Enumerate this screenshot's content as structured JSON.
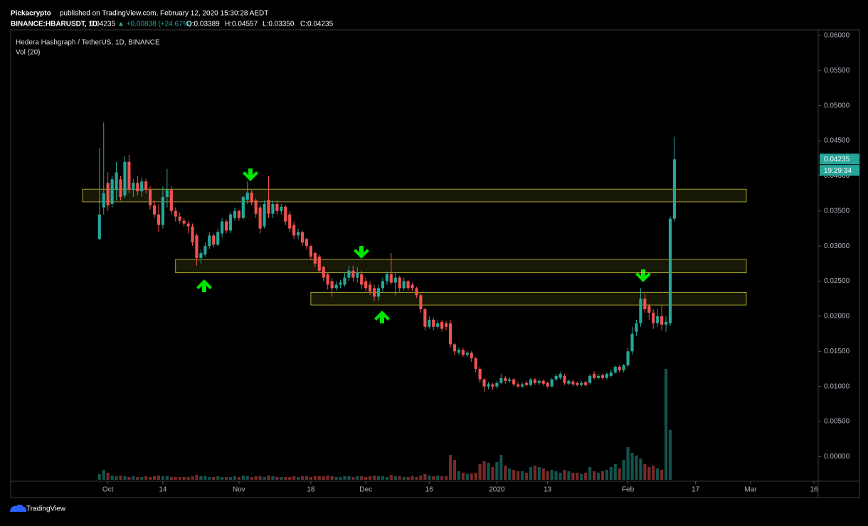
{
  "header": {
    "publisher": "Pickacrypto",
    "published": "published on TradingView.com, February 12, 2020 15:30:28 AEDT",
    "symbol": "BINANCE:HBARUSDT, 1D",
    "last": "0.04235",
    "change": "▲ +0.00838 (+24.67%)",
    "ohlc": [
      "O:0.03389",
      "H:0.04557",
      "L:0.03350",
      "C:0.04235"
    ]
  },
  "footer": {
    "brand": "TradingView"
  },
  "chart_data": {
    "type": "candlestick",
    "title": "Hedera Hashgraph / TetherUS, 1D, BINANCE",
    "subtitle": "Vol (20)",
    "up_color": "#26a69a",
    "down_color": "#ef5350",
    "zone_color": "#c8c832",
    "ylim": [
      -0.0033,
      0.0608
    ],
    "yticks": [
      {
        "value": 0,
        "label": "0.00000"
      },
      {
        "value": 0.005,
        "label": "0.00500"
      },
      {
        "value": 0.01,
        "label": "0.01000"
      },
      {
        "value": 0.015,
        "label": "0.01500"
      },
      {
        "value": 0.02,
        "label": "0.02000"
      },
      {
        "value": 0.025,
        "label": "0.02500"
      },
      {
        "value": 0.03,
        "label": "0.03000"
      },
      {
        "value": 0.035,
        "label": "0.03500"
      },
      {
        "value": 0.04,
        "label": "0.04000"
      },
      {
        "value": 0.045,
        "label": "0.04500"
      },
      {
        "value": 0.05,
        "label": "0.05000"
      },
      {
        "value": 0.055,
        "label": "0.05500"
      },
      {
        "value": 0.06,
        "label": "0.06000"
      }
    ],
    "xlim": [
      -21,
      170
    ],
    "xticks": [
      {
        "value": 2,
        "label": "Oct"
      },
      {
        "value": 15,
        "label": "14"
      },
      {
        "value": 33,
        "label": "Nov"
      },
      {
        "value": 50,
        "label": "18"
      },
      {
        "value": 63,
        "label": "Dec"
      },
      {
        "value": 78,
        "label": "16"
      },
      {
        "value": 94,
        "label": "2020"
      },
      {
        "value": 106,
        "label": "13"
      },
      {
        "value": 125,
        "label": "Feb"
      },
      {
        "value": 141,
        "label": "17"
      },
      {
        "value": 154,
        "label": "Mar"
      },
      {
        "value": 169,
        "label": "16"
      }
    ],
    "last_price": 0.04235,
    "countdown": "19:29:34",
    "zones": [
      {
        "top": 0.0381,
        "bottom": 0.0363,
        "from": -4,
        "to": 153
      },
      {
        "top": 0.0281,
        "bottom": 0.0262,
        "from": 18,
        "to": 153
      },
      {
        "top": 0.0234,
        "bottom": 0.0216,
        "from": 50,
        "to": 153
      }
    ],
    "ohlc": [
      [
        0.031,
        0.044,
        0.0308,
        0.0345
      ],
      [
        0.0355,
        0.0476,
        0.0345,
        0.0375
      ],
      [
        0.039,
        0.0405,
        0.035,
        0.0358
      ],
      [
        0.036,
        0.04,
        0.0355,
        0.0395
      ],
      [
        0.038,
        0.042,
        0.0365,
        0.0405
      ],
      [
        0.0395,
        0.04,
        0.0365,
        0.037
      ],
      [
        0.0372,
        0.0428,
        0.0368,
        0.042
      ],
      [
        0.042,
        0.043,
        0.0375,
        0.038
      ],
      [
        0.038,
        0.0395,
        0.037,
        0.039
      ],
      [
        0.039,
        0.04,
        0.0372,
        0.0378
      ],
      [
        0.0378,
        0.0398,
        0.037,
        0.0392
      ],
      [
        0.0392,
        0.0396,
        0.0375,
        0.038
      ],
      [
        0.038,
        0.0385,
        0.0352,
        0.0358
      ],
      [
        0.0358,
        0.0365,
        0.034,
        0.0345
      ],
      [
        0.0345,
        0.036,
        0.032,
        0.033
      ],
      [
        0.033,
        0.0385,
        0.0325,
        0.037
      ],
      [
        0.037,
        0.041,
        0.0355,
        0.038
      ],
      [
        0.038,
        0.0385,
        0.0345,
        0.035
      ],
      [
        0.035,
        0.0355,
        0.0335,
        0.0342
      ],
      [
        0.0342,
        0.0348,
        0.0332,
        0.0336
      ],
      [
        0.0336,
        0.034,
        0.0328,
        0.0332
      ],
      [
        0.0332,
        0.0336,
        0.0318,
        0.0328
      ],
      [
        0.0328,
        0.0332,
        0.03,
        0.0305
      ],
      [
        0.0315,
        0.0318,
        0.0272,
        0.0283
      ],
      [
        0.0283,
        0.0295,
        0.0275,
        0.029
      ],
      [
        0.0288,
        0.0305,
        0.0285,
        0.03
      ],
      [
        0.03,
        0.032,
        0.0296,
        0.0315
      ],
      [
        0.0315,
        0.0318,
        0.0298,
        0.0302
      ],
      [
        0.0302,
        0.0325,
        0.03,
        0.032
      ],
      [
        0.0318,
        0.034,
        0.0312,
        0.0335
      ],
      [
        0.0335,
        0.0338,
        0.0318,
        0.0322
      ],
      [
        0.0322,
        0.0348,
        0.0318,
        0.0345
      ],
      [
        0.034,
        0.0355,
        0.0336,
        0.035
      ],
      [
        0.035,
        0.0352,
        0.0336,
        0.034
      ],
      [
        0.034,
        0.0372,
        0.0338,
        0.037
      ],
      [
        0.0366,
        0.0392,
        0.036,
        0.0376
      ],
      [
        0.0376,
        0.038,
        0.0358,
        0.0362
      ],
      [
        0.0365,
        0.0368,
        0.034,
        0.0346
      ],
      [
        0.0355,
        0.036,
        0.0318,
        0.0325
      ],
      [
        0.0328,
        0.0365,
        0.0325,
        0.036
      ],
      [
        0.0366,
        0.04,
        0.034,
        0.0346
      ],
      [
        0.0346,
        0.0365,
        0.034,
        0.036
      ],
      [
        0.036,
        0.0365,
        0.0345,
        0.035
      ],
      [
        0.035,
        0.036,
        0.0345,
        0.0356
      ],
      [
        0.0356,
        0.0358,
        0.033,
        0.0335
      ],
      [
        0.0345,
        0.035,
        0.032,
        0.0325
      ],
      [
        0.033,
        0.0335,
        0.031,
        0.0315
      ],
      [
        0.0315,
        0.0325,
        0.031,
        0.032
      ],
      [
        0.032,
        0.0322,
        0.03,
        0.0305
      ],
      [
        0.031,
        0.0312,
        0.0295,
        0.03
      ],
      [
        0.03,
        0.0302,
        0.028,
        0.0285
      ],
      [
        0.029,
        0.0292,
        0.027,
        0.0275
      ],
      [
        0.0285,
        0.0288,
        0.0262,
        0.0265
      ],
      [
        0.027,
        0.0272,
        0.025,
        0.0255
      ],
      [
        0.026,
        0.0262,
        0.0238,
        0.0245
      ],
      [
        0.025,
        0.0254,
        0.0228,
        0.024
      ],
      [
        0.024,
        0.025,
        0.0236,
        0.0245
      ],
      [
        0.0245,
        0.0252,
        0.024,
        0.0248
      ],
      [
        0.0245,
        0.0262,
        0.0242,
        0.0255
      ],
      [
        0.0255,
        0.0272,
        0.025,
        0.0265
      ],
      [
        0.0265,
        0.0272,
        0.025,
        0.0255
      ],
      [
        0.0255,
        0.027,
        0.0248,
        0.0262
      ],
      [
        0.026,
        0.0265,
        0.0238,
        0.0245
      ],
      [
        0.025,
        0.0255,
        0.0235,
        0.024
      ],
      [
        0.0245,
        0.025,
        0.023,
        0.0235
      ],
      [
        0.024,
        0.0245,
        0.0222,
        0.0228
      ],
      [
        0.0228,
        0.0245,
        0.0222,
        0.024
      ],
      [
        0.024,
        0.0255,
        0.0235,
        0.025
      ],
      [
        0.025,
        0.0264,
        0.0245,
        0.026
      ],
      [
        0.026,
        0.029,
        0.0245,
        0.0248
      ],
      [
        0.0248,
        0.0262,
        0.023,
        0.0255
      ],
      [
        0.0255,
        0.0258,
        0.0235,
        0.024
      ],
      [
        0.024,
        0.0255,
        0.0236,
        0.025
      ],
      [
        0.025,
        0.0252,
        0.0236,
        0.024
      ],
      [
        0.0245,
        0.0248,
        0.0236,
        0.024
      ],
      [
        0.024,
        0.0242,
        0.0226,
        0.023
      ],
      [
        0.023,
        0.0232,
        0.0205,
        0.021
      ],
      [
        0.021,
        0.0212,
        0.018,
        0.0185
      ],
      [
        0.0185,
        0.02,
        0.0182,
        0.0195
      ],
      [
        0.0195,
        0.0198,
        0.018,
        0.0185
      ],
      [
        0.0185,
        0.0195,
        0.0182,
        0.019
      ],
      [
        0.0192,
        0.0195,
        0.0178,
        0.0182
      ],
      [
        0.019,
        0.0193,
        0.018,
        0.0185
      ],
      [
        0.019,
        0.0195,
        0.0155,
        0.016
      ],
      [
        0.016,
        0.0162,
        0.0145,
        0.015
      ],
      [
        0.0148,
        0.0155,
        0.0145,
        0.0152
      ],
      [
        0.0152,
        0.0155,
        0.0142,
        0.0145
      ],
      [
        0.0145,
        0.015,
        0.0142,
        0.0148
      ],
      [
        0.0148,
        0.015,
        0.0135,
        0.014
      ],
      [
        0.014,
        0.0142,
        0.012,
        0.0125
      ],
      [
        0.0125,
        0.0128,
        0.0105,
        0.011
      ],
      [
        0.011,
        0.0112,
        0.0092,
        0.01
      ],
      [
        0.01,
        0.0106,
        0.0096,
        0.0103
      ],
      [
        0.0103,
        0.0105,
        0.0095,
        0.01
      ],
      [
        0.01,
        0.0108,
        0.0097,
        0.0105
      ],
      [
        0.0105,
        0.0118,
        0.0103,
        0.0112
      ],
      [
        0.0112,
        0.0115,
        0.0104,
        0.0108
      ],
      [
        0.0108,
        0.0113,
        0.0105,
        0.011
      ],
      [
        0.011,
        0.0112,
        0.01,
        0.0103
      ],
      [
        0.0103,
        0.0106,
        0.0098,
        0.01
      ],
      [
        0.01,
        0.0106,
        0.0098,
        0.0103
      ],
      [
        0.0105,
        0.0108,
        0.01,
        0.0102
      ],
      [
        0.0102,
        0.0112,
        0.01,
        0.011
      ],
      [
        0.011,
        0.0112,
        0.0102,
        0.0105
      ],
      [
        0.0105,
        0.011,
        0.0102,
        0.0108
      ],
      [
        0.0108,
        0.011,
        0.0101,
        0.0104
      ],
      [
        0.0105,
        0.0107,
        0.0098,
        0.01
      ],
      [
        0.01,
        0.0112,
        0.0099,
        0.011
      ],
      [
        0.011,
        0.0118,
        0.0108,
        0.0115
      ],
      [
        0.0112,
        0.012,
        0.011,
        0.0118
      ],
      [
        0.0115,
        0.0118,
        0.0102,
        0.0105
      ],
      [
        0.0104,
        0.011,
        0.0102,
        0.0108
      ],
      [
        0.0107,
        0.011,
        0.01,
        0.0103
      ],
      [
        0.0105,
        0.0107,
        0.01,
        0.0102
      ],
      [
        0.0102,
        0.0108,
        0.01,
        0.0105
      ],
      [
        0.0106,
        0.0108,
        0.01,
        0.0102
      ],
      [
        0.0105,
        0.0118,
        0.0103,
        0.0115
      ],
      [
        0.0118,
        0.0122,
        0.011,
        0.0112
      ],
      [
        0.0112,
        0.0118,
        0.011,
        0.0115
      ],
      [
        0.0116,
        0.0118,
        0.011,
        0.0112
      ],
      [
        0.0112,
        0.012,
        0.011,
        0.0118
      ],
      [
        0.0115,
        0.0124,
        0.0113,
        0.012
      ],
      [
        0.012,
        0.013,
        0.0118,
        0.0128
      ],
      [
        0.0128,
        0.013,
        0.012,
        0.0123
      ],
      [
        0.0123,
        0.0132,
        0.012,
        0.013
      ],
      [
        0.013,
        0.0155,
        0.0128,
        0.015
      ],
      [
        0.015,
        0.0185,
        0.0145,
        0.0175
      ],
      [
        0.0178,
        0.0195,
        0.0172,
        0.019
      ],
      [
        0.019,
        0.024,
        0.0185,
        0.0225
      ],
      [
        0.0225,
        0.0232,
        0.0205,
        0.021
      ],
      [
        0.0215,
        0.0218,
        0.0195,
        0.0205
      ],
      [
        0.0205,
        0.021,
        0.0182,
        0.019
      ],
      [
        0.019,
        0.021,
        0.0185,
        0.02
      ],
      [
        0.02,
        0.0215,
        0.018,
        0.0188
      ],
      [
        0.0188,
        0.02,
        0.0178,
        0.0192
      ],
      [
        0.019,
        0.0342,
        0.0186,
        0.0339
      ],
      [
        0.03389,
        0.04557,
        0.0335,
        0.04235
      ]
    ],
    "vlim": [
      0,
      200
    ],
    "volume": [
      8,
      14,
      10,
      6,
      5,
      6,
      5,
      4,
      5,
      4,
      4,
      5,
      4,
      5,
      6,
      5,
      5,
      4,
      4,
      4,
      4,
      4,
      5,
      7,
      5,
      5,
      4,
      4,
      5,
      4,
      4,
      4,
      5,
      4,
      6,
      5,
      4,
      5,
      5,
      4,
      6,
      5,
      4,
      4,
      4,
      4,
      5,
      4,
      5,
      5,
      4,
      5,
      5,
      5,
      6,
      5,
      4,
      4,
      5,
      5,
      4,
      5,
      5,
      4,
      5,
      6,
      5,
      5,
      4,
      7,
      5,
      5,
      4,
      4,
      5,
      4,
      6,
      8,
      6,
      5,
      6,
      5,
      5,
      35,
      28,
      12,
      10,
      8,
      9,
      10,
      22,
      26,
      24,
      18,
      25,
      35,
      20,
      16,
      14,
      12,
      12,
      10,
      18,
      20,
      18,
      16,
      12,
      14,
      12,
      10,
      14,
      12,
      10,
      10,
      8,
      10,
      18,
      12,
      10,
      12,
      14,
      18,
      22,
      16,
      28,
      46,
      38,
      34,
      30,
      22,
      18,
      20,
      16,
      14,
      156,
      70
    ]
  }
}
